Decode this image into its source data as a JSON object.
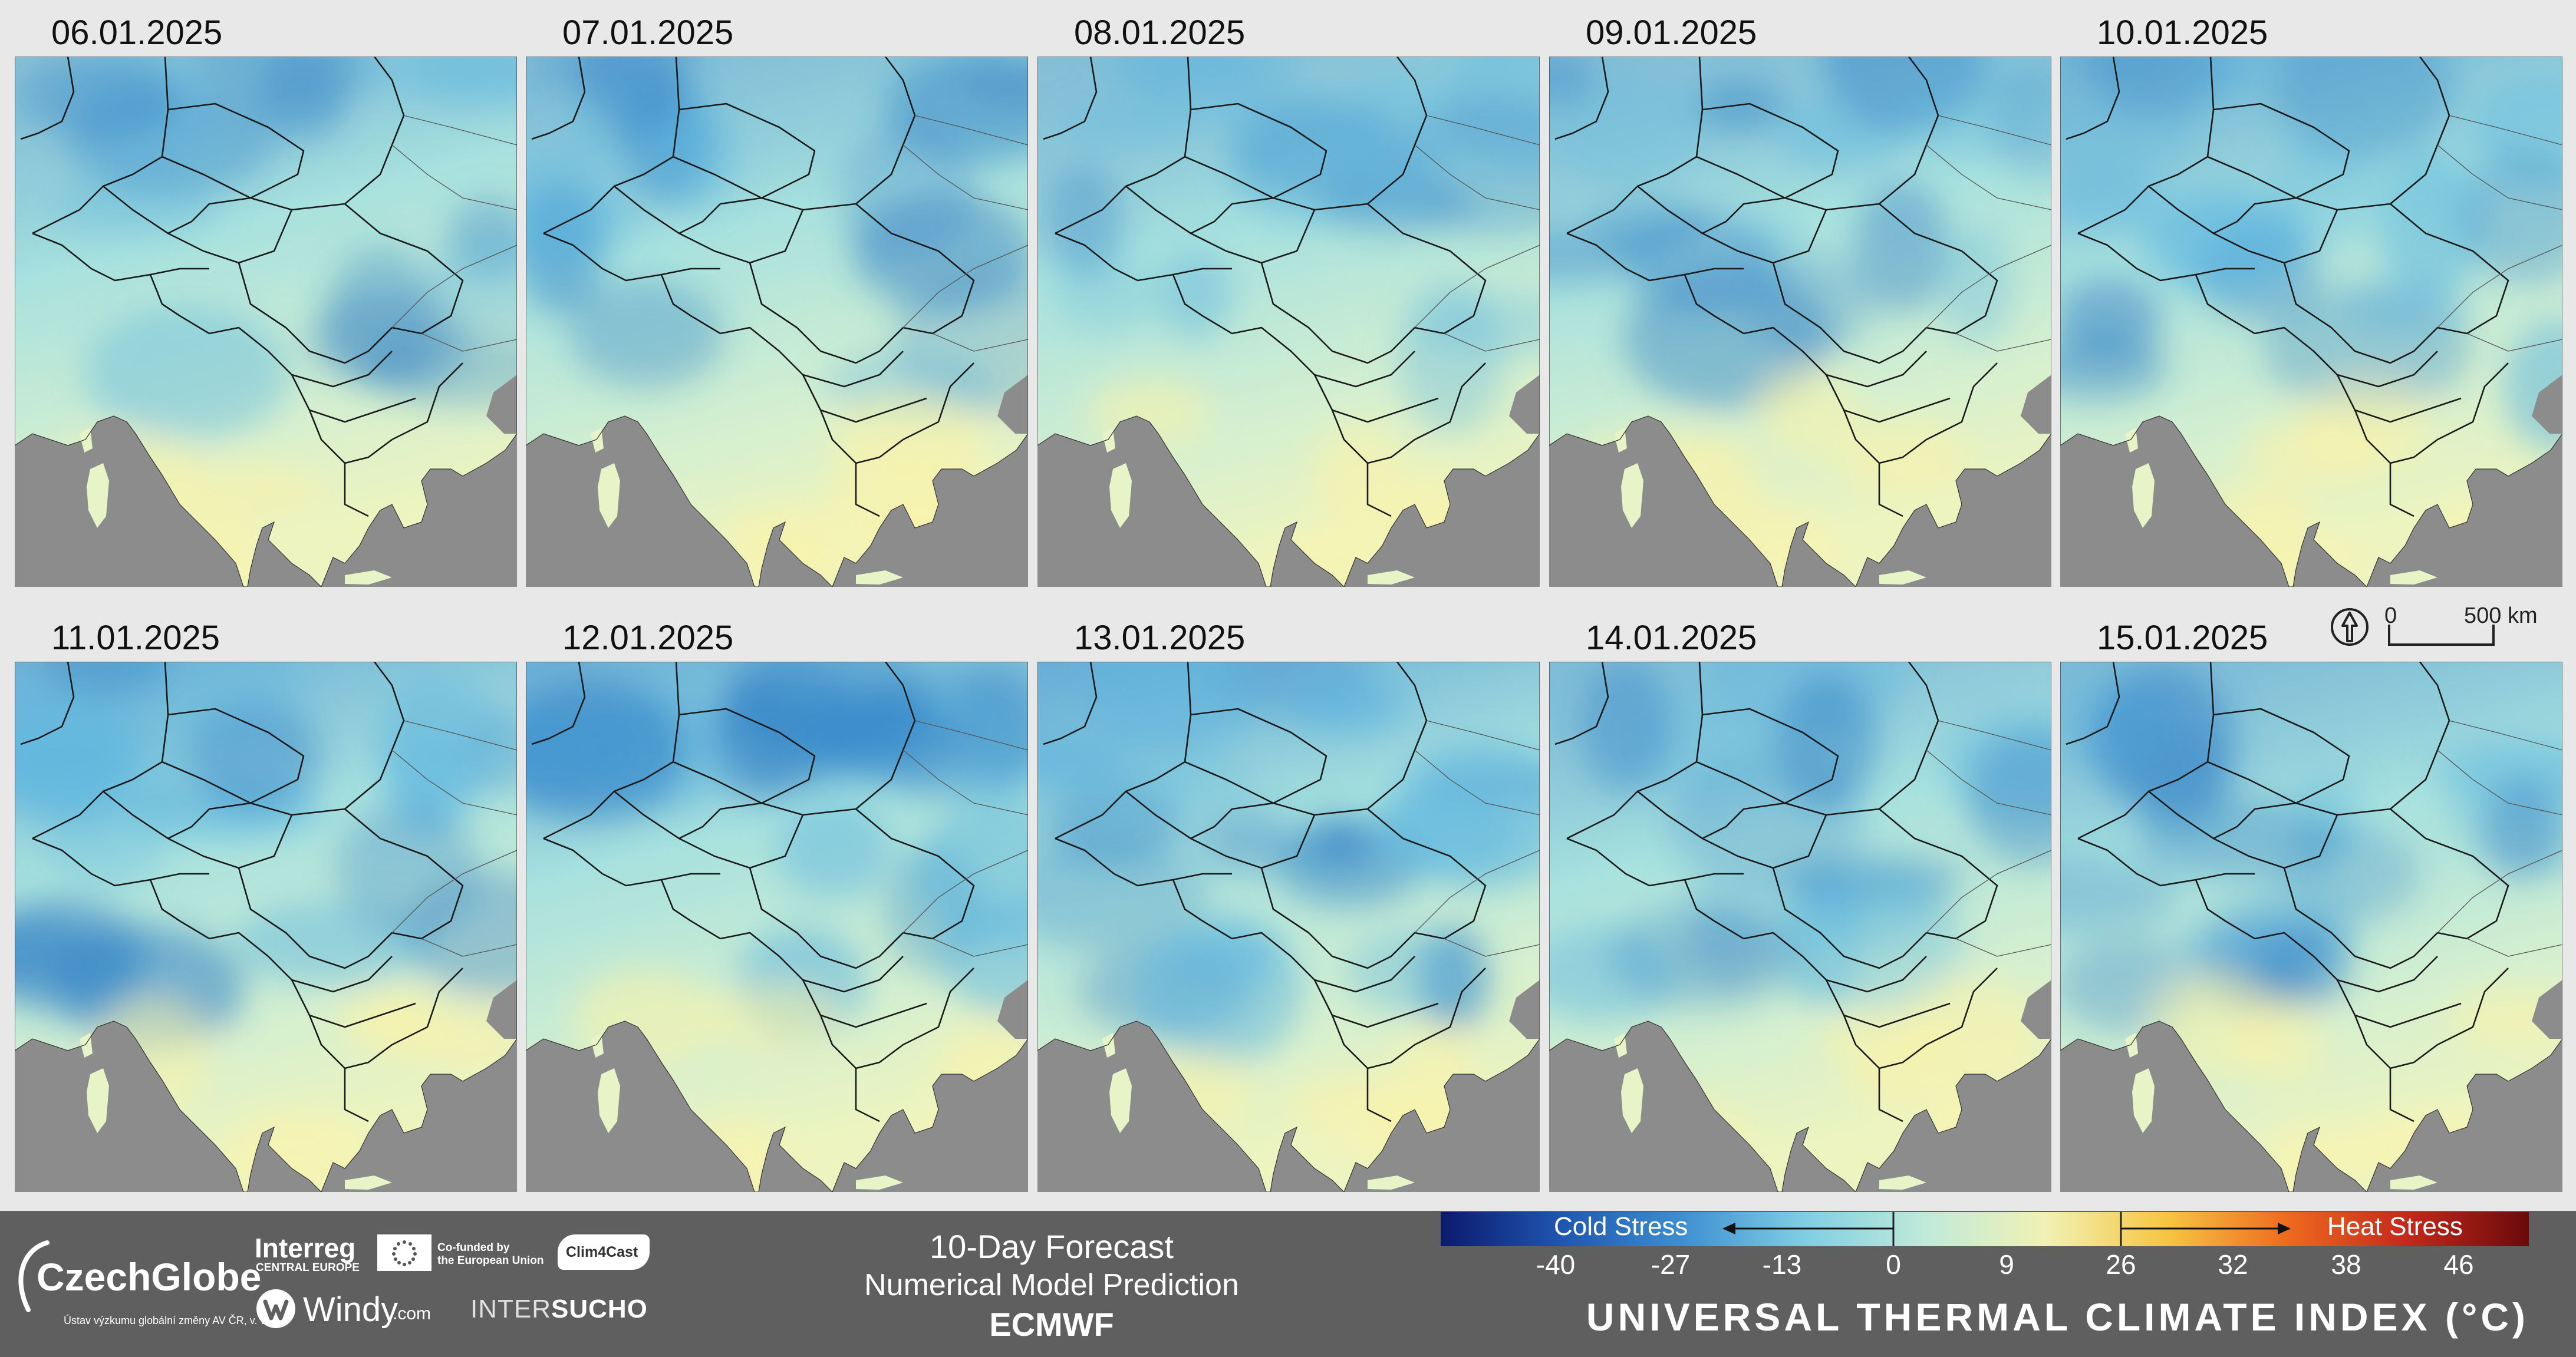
{
  "panels": [
    {
      "date": "06.01.2025",
      "cold": 0.4
    },
    {
      "date": "07.01.2025",
      "cold": 0.5
    },
    {
      "date": "08.01.2025",
      "cold": 0.45
    },
    {
      "date": "09.01.2025",
      "cold": 0.45
    },
    {
      "date": "10.01.2025",
      "cold": 0.65
    },
    {
      "date": "11.01.2025",
      "cold": 0.7
    },
    {
      "date": "12.01.2025",
      "cold": 0.75
    },
    {
      "date": "13.01.2025",
      "cold": 0.8
    },
    {
      "date": "14.01.2025",
      "cold": 0.5
    },
    {
      "date": "15.01.2025",
      "cold": 0.55
    }
  ],
  "scale": {
    "zero": "0",
    "distance": "500 km"
  },
  "forecast": {
    "title": "10-Day Forecast",
    "subtitle": "Numerical Model Prediction",
    "model": "ECMWF"
  },
  "logos": {
    "czechglobe": "CzechGlobe",
    "czechglobe_sub": "Ústav výzkumu globální změny AV ČR, v. v. i.",
    "interreg": "Interreg",
    "interreg_sub": "CENTRAL EUROPE",
    "cofunded_1": "Co-funded by",
    "cofunded_2": "the European Union",
    "clim4cast": "Clim4Cast",
    "windy": "Windy",
    "windy_suffix": ".com",
    "intersucho_1": "INTER",
    "intersucho_2": "SUCHO"
  },
  "legend": {
    "cold_label": "Cold Stress",
    "heat_label": "Heat Stress",
    "ticks": [
      "-40",
      "-27",
      "-13",
      "0",
      "9",
      "26",
      "32",
      "38",
      "46"
    ],
    "title": "UNIVERSAL THERMAL CLIMATE INDEX (°C)",
    "colors": [
      "#0c1a6e",
      "#1f56b0",
      "#3d8fd1",
      "#7fcde3",
      "#bfead9",
      "#f1f1b4",
      "#f6c542",
      "#ee6a1f",
      "#c4281c",
      "#6a0a0a"
    ]
  },
  "colors": {
    "sea": "#8c8c8c",
    "land_warm": "#eef4bf",
    "land_mid": "#a8e1de",
    "land_cold": "#4f9fd6",
    "footer": "#5f5f5f"
  }
}
